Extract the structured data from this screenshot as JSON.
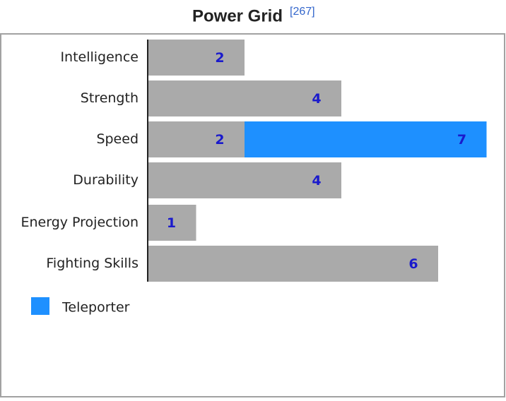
{
  "chart_data": {
    "type": "bar",
    "orientation": "horizontal",
    "title": "Power Grid",
    "title_ref": "[267]",
    "categories": [
      "Intelligence",
      "Strength",
      "Speed",
      "Durability",
      "Energy Projection",
      "Fighting Skills"
    ],
    "series": [
      {
        "color": "#aaaaaa",
        "values": [
          2,
          4,
          2,
          4,
          1,
          6
        ]
      },
      {
        "name": "Teleporter",
        "color": "#1e90ff",
        "values": [
          null,
          null,
          7,
          null,
          null,
          null
        ]
      }
    ],
    "value_label_color": "#1a1acc",
    "legend": "bottom-left"
  }
}
